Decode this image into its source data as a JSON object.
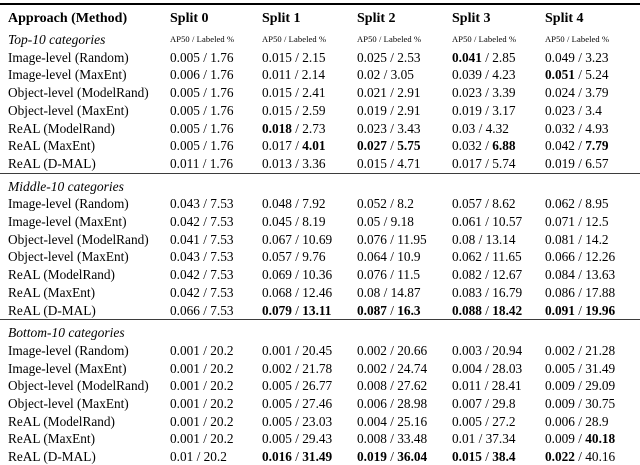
{
  "table": {
    "header": [
      "Approach (Method)",
      "Split 0",
      "Split 1",
      "Split 2",
      "Split 3",
      "Split 4"
    ],
    "subheader": "AP50 / Labeled %",
    "sections": [
      {
        "title": "Top-10 categories",
        "rows": [
          {
            "label": "Image-level (Random)",
            "cells": [
              {
                "a": "0.005",
                "l": "1.76",
                "b": ""
              },
              {
                "a": "0.015",
                "l": "2.15",
                "b": ""
              },
              {
                "a": "0.025",
                "l": "2.53",
                "b": ""
              },
              {
                "a": "0.041",
                "l": "2.85",
                "b": "a"
              },
              {
                "a": "0.049",
                "l": "3.23",
                "b": ""
              }
            ]
          },
          {
            "label": "Image-level (MaxEnt)",
            "cells": [
              {
                "a": "0.006",
                "l": "1.76",
                "b": ""
              },
              {
                "a": "0.011",
                "l": "2.14",
                "b": ""
              },
              {
                "a": "0.02",
                "l": "3.05",
                "b": ""
              },
              {
                "a": "0.039",
                "l": "4.23",
                "b": ""
              },
              {
                "a": "0.051",
                "l": "5.24",
                "b": "a"
              }
            ]
          },
          {
            "label": "Object-level (ModelRand)",
            "cells": [
              {
                "a": "0.005",
                "l": "1.76",
                "b": ""
              },
              {
                "a": "0.015",
                "l": "2.41",
                "b": ""
              },
              {
                "a": "0.021",
                "l": "2.91",
                "b": ""
              },
              {
                "a": "0.023",
                "l": "3.39",
                "b": ""
              },
              {
                "a": "0.024",
                "l": "3.79",
                "b": ""
              }
            ]
          },
          {
            "label": "Object-level (MaxEnt)",
            "cells": [
              {
                "a": "0.005",
                "l": "1.76",
                "b": ""
              },
              {
                "a": "0.015",
                "l": "2.59",
                "b": ""
              },
              {
                "a": "0.019",
                "l": "2.91",
                "b": ""
              },
              {
                "a": "0.019",
                "l": "3.17",
                "b": ""
              },
              {
                "a": "0.023",
                "l": "3.4",
                "b": ""
              }
            ]
          },
          {
            "label": "ReAL (ModelRand)",
            "cells": [
              {
                "a": "0.005",
                "l": "1.76",
                "b": ""
              },
              {
                "a": "0.018",
                "l": "2.73",
                "b": "a"
              },
              {
                "a": "0.023",
                "l": "3.43",
                "b": ""
              },
              {
                "a": "0.03",
                "l": "4.32",
                "b": ""
              },
              {
                "a": "0.032",
                "l": "4.93",
                "b": ""
              }
            ]
          },
          {
            "label": "ReAL (MaxEnt)",
            "cells": [
              {
                "a": "0.005",
                "l": "1.76",
                "b": ""
              },
              {
                "a": "0.017",
                "l": "4.01",
                "b": "l"
              },
              {
                "a": "0.027",
                "l": "5.75",
                "b": "al"
              },
              {
                "a": "0.032",
                "l": "6.88",
                "b": "l"
              },
              {
                "a": "0.042",
                "l": "7.79",
                "b": "l"
              }
            ]
          },
          {
            "label": "ReAL (D-MAL)",
            "cells": [
              {
                "a": "0.011",
                "l": "1.76",
                "b": ""
              },
              {
                "a": "0.013",
                "l": "3.36",
                "b": ""
              },
              {
                "a": "0.015",
                "l": "4.71",
                "b": ""
              },
              {
                "a": "0.017",
                "l": "5.74",
                "b": ""
              },
              {
                "a": "0.019",
                "l": "6.57",
                "b": ""
              }
            ]
          }
        ]
      },
      {
        "title": "Middle-10 categories",
        "rows": [
          {
            "label": "Image-level (Random)",
            "cells": [
              {
                "a": "0.043",
                "l": "7.53",
                "b": ""
              },
              {
                "a": "0.048",
                "l": "7.92",
                "b": ""
              },
              {
                "a": "0.052",
                "l": "8.2",
                "b": ""
              },
              {
                "a": "0.057",
                "l": "8.62",
                "b": ""
              },
              {
                "a": "0.062",
                "l": "8.95",
                "b": ""
              }
            ]
          },
          {
            "label": "Image-level (MaxEnt)",
            "cells": [
              {
                "a": "0.042",
                "l": "7.53",
                "b": ""
              },
              {
                "a": "0.045",
                "l": "8.19",
                "b": ""
              },
              {
                "a": "0.05",
                "l": "9.18",
                "b": ""
              },
              {
                "a": "0.061",
                "l": "10.57",
                "b": ""
              },
              {
                "a": "0.071",
                "l": "12.5",
                "b": ""
              }
            ]
          },
          {
            "label": "Object-level (ModelRand)",
            "cells": [
              {
                "a": "0.041",
                "l": "7.53",
                "b": ""
              },
              {
                "a": "0.067",
                "l": "10.69",
                "b": ""
              },
              {
                "a": "0.076",
                "l": "11.95",
                "b": ""
              },
              {
                "a": "0.08",
                "l": "13.14",
                "b": ""
              },
              {
                "a": "0.081",
                "l": "14.2",
                "b": ""
              }
            ]
          },
          {
            "label": "Object-level (MaxEnt)",
            "cells": [
              {
                "a": "0.043",
                "l": "7.53",
                "b": ""
              },
              {
                "a": "0.057",
                "l": "9.76",
                "b": ""
              },
              {
                "a": "0.064",
                "l": "10.9",
                "b": ""
              },
              {
                "a": "0.062",
                "l": "11.65",
                "b": ""
              },
              {
                "a": "0.066",
                "l": "12.26",
                "b": ""
              }
            ]
          },
          {
            "label": "ReAL (ModelRand)",
            "cells": [
              {
                "a": "0.042",
                "l": "7.53",
                "b": ""
              },
              {
                "a": "0.069",
                "l": "10.36",
                "b": ""
              },
              {
                "a": "0.076",
                "l": "11.5",
                "b": ""
              },
              {
                "a": "0.082",
                "l": "12.67",
                "b": ""
              },
              {
                "a": "0.084",
                "l": "13.63",
                "b": ""
              }
            ]
          },
          {
            "label": "ReAL (MaxEnt)",
            "cells": [
              {
                "a": "0.042",
                "l": "7.53",
                "b": ""
              },
              {
                "a": "0.068",
                "l": "12.46",
                "b": ""
              },
              {
                "a": "0.08",
                "l": "14.87",
                "b": ""
              },
              {
                "a": "0.083",
                "l": "16.79",
                "b": ""
              },
              {
                "a": "0.086",
                "l": "17.88",
                "b": ""
              }
            ]
          },
          {
            "label": "ReAL (D-MAL)",
            "cells": [
              {
                "a": "0.066",
                "l": "7.53",
                "b": ""
              },
              {
                "a": "0.079",
                "l": "13.11",
                "b": "al"
              },
              {
                "a": "0.087",
                "l": "16.3",
                "b": "al"
              },
              {
                "a": "0.088",
                "l": "18.42",
                "b": "al"
              },
              {
                "a": "0.091",
                "l": "19.96",
                "b": "al"
              }
            ]
          }
        ]
      },
      {
        "title": "Bottom-10 categories",
        "rows": [
          {
            "label": "Image-level (Random)",
            "cells": [
              {
                "a": "0.001",
                "l": "20.2",
                "b": ""
              },
              {
                "a": "0.001",
                "l": "20.45",
                "b": ""
              },
              {
                "a": "0.002",
                "l": "20.66",
                "b": ""
              },
              {
                "a": "0.003",
                "l": "20.94",
                "b": ""
              },
              {
                "a": "0.002",
                "l": "21.28",
                "b": ""
              }
            ]
          },
          {
            "label": "Image-level (MaxEnt)",
            "cells": [
              {
                "a": "0.001",
                "l": "20.2",
                "b": ""
              },
              {
                "a": "0.002",
                "l": "21.78",
                "b": ""
              },
              {
                "a": "0.002",
                "l": "24.74",
                "b": ""
              },
              {
                "a": "0.004",
                "l": "28.03",
                "b": ""
              },
              {
                "a": "0.005",
                "l": "31.49",
                "b": ""
              }
            ]
          },
          {
            "label": "Object-level (ModelRand)",
            "cells": [
              {
                "a": "0.001",
                "l": "20.2",
                "b": ""
              },
              {
                "a": "0.005",
                "l": "26.77",
                "b": ""
              },
              {
                "a": "0.008",
                "l": "27.62",
                "b": ""
              },
              {
                "a": "0.011",
                "l": "28.41",
                "b": ""
              },
              {
                "a": "0.009",
                "l": "29.09",
                "b": ""
              }
            ]
          },
          {
            "label": "Object-level (MaxEnt)",
            "cells": [
              {
                "a": "0.001",
                "l": "20.2",
                "b": ""
              },
              {
                "a": "0.005",
                "l": "27.46",
                "b": ""
              },
              {
                "a": "0.006",
                "l": "28.98",
                "b": ""
              },
              {
                "a": "0.007",
                "l": "29.8",
                "b": ""
              },
              {
                "a": "0.009",
                "l": "30.75",
                "b": ""
              }
            ]
          },
          {
            "label": "ReAL (ModelRand)",
            "cells": [
              {
                "a": "0.001",
                "l": "20.2",
                "b": ""
              },
              {
                "a": "0.005",
                "l": "23.03",
                "b": ""
              },
              {
                "a": "0.004",
                "l": "25.16",
                "b": ""
              },
              {
                "a": "0.005",
                "l": "27.2",
                "b": ""
              },
              {
                "a": "0.006",
                "l": "28.9",
                "b": ""
              }
            ]
          },
          {
            "label": "ReAL (MaxEnt)",
            "cells": [
              {
                "a": "0.001",
                "l": "20.2",
                "b": ""
              },
              {
                "a": "0.005",
                "l": "29.43",
                "b": ""
              },
              {
                "a": "0.008",
                "l": "33.48",
                "b": ""
              },
              {
                "a": "0.01",
                "l": "37.34",
                "b": ""
              },
              {
                "a": "0.009",
                "l": "40.18",
                "b": "l"
              }
            ]
          },
          {
            "label": "ReAL (D-MAL)",
            "cells": [
              {
                "a": "0.01",
                "l": "20.2",
                "b": ""
              },
              {
                "a": "0.016",
                "l": "31.49",
                "b": "al"
              },
              {
                "a": "0.019",
                "l": "36.04",
                "b": "al"
              },
              {
                "a": "0.015",
                "l": "38.4",
                "b": "al"
              },
              {
                "a": "0.022",
                "l": "40.16",
                "b": "a"
              }
            ]
          }
        ]
      }
    ]
  }
}
